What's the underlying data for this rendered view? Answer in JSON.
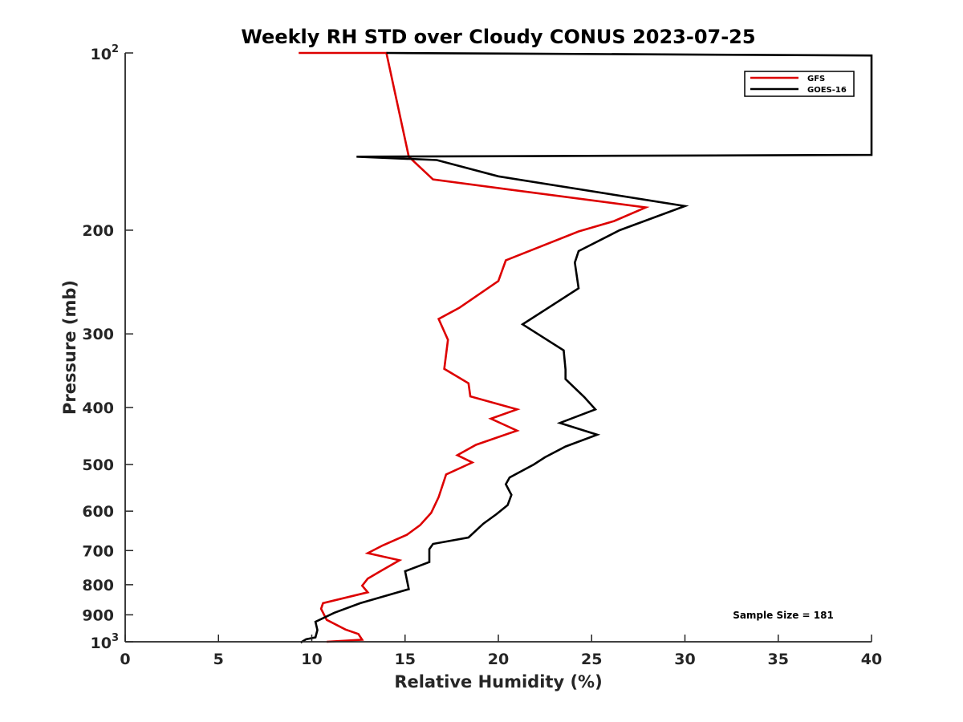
{
  "chart_data": {
    "type": "line",
    "title": "Weekly RH STD over Cloudy CONUS 2023-07-25",
    "xlabel": "Relative Humidity (%)",
    "ylabel": "Pressure (mb)",
    "xlim": [
      0,
      40
    ],
    "ylim": [
      100,
      1000
    ],
    "y_scale": "log",
    "y_reversed": true,
    "grid": false,
    "x_ticks": [
      0,
      5,
      10,
      15,
      20,
      25,
      30,
      35,
      40
    ],
    "x_tick_labels": [
      "0",
      "5",
      "10",
      "15",
      "20",
      "25",
      "30",
      "35",
      "40"
    ],
    "y_ticks": [
      {
        "value": 100,
        "base": "10",
        "exp": "2"
      },
      {
        "value": 200,
        "label": "200"
      },
      {
        "value": 300,
        "label": "300"
      },
      {
        "value": 400,
        "label": "400"
      },
      {
        "value": 500,
        "label": "500"
      },
      {
        "value": 600,
        "label": "600"
      },
      {
        "value": 700,
        "label": "700"
      },
      {
        "value": 800,
        "label": "800"
      },
      {
        "value": 900,
        "label": "900"
      },
      {
        "value": 1000,
        "base": "10",
        "exp": "3"
      }
    ],
    "legend_position": "top-right",
    "annotation": "Sample Size = 181",
    "series": [
      {
        "name": "GFS",
        "color": "#dd0000",
        "points": [
          [
            9.3,
            100
          ],
          [
            14,
            100
          ],
          [
            15.2,
            150
          ],
          [
            16.5,
            164
          ],
          [
            27.9,
            183
          ],
          [
            26.2,
            193
          ],
          [
            24.3,
            201
          ],
          [
            20.4,
            225
          ],
          [
            20.0,
            244
          ],
          [
            17.9,
            271
          ],
          [
            16.8,
            283
          ],
          [
            17.3,
            307
          ],
          [
            17.1,
            344
          ],
          [
            18.4,
            364
          ],
          [
            18.5,
            383
          ],
          [
            21.0,
            403
          ],
          [
            19.6,
            418
          ],
          [
            21.0,
            438
          ],
          [
            18.8,
            463
          ],
          [
            17.8,
            482
          ],
          [
            18.6,
            496
          ],
          [
            17.2,
            520
          ],
          [
            16.8,
            568
          ],
          [
            16.4,
            604
          ],
          [
            15.8,
            634
          ],
          [
            15.1,
            658
          ],
          [
            13.8,
            686
          ],
          [
            13.0,
            707
          ],
          [
            14.7,
            727
          ],
          [
            13.7,
            758
          ],
          [
            13.0,
            781
          ],
          [
            12.7,
            803
          ],
          [
            13.0,
            824
          ],
          [
            10.6,
            860
          ],
          [
            10.5,
            879
          ],
          [
            10.8,
            918
          ],
          [
            11.8,
            953
          ],
          [
            12.5,
            970
          ],
          [
            12.7,
            992
          ],
          [
            10.8,
            1000
          ]
        ]
      },
      {
        "name": "GOES-16",
        "color": "#000000",
        "points": [
          [
            14,
            100
          ],
          [
            40,
            101
          ],
          [
            40,
            149
          ],
          [
            12.4,
            150
          ],
          [
            16.7,
            152
          ],
          [
            20.0,
            162
          ],
          [
            30.0,
            182
          ],
          [
            26.5,
            200
          ],
          [
            24.3,
            217
          ],
          [
            24.1,
            227
          ],
          [
            24.3,
            251
          ],
          [
            21.3,
            289
          ],
          [
            23.5,
            320
          ],
          [
            23.6,
            345
          ],
          [
            23.6,
            358
          ],
          [
            24.6,
            384
          ],
          [
            25.2,
            403
          ],
          [
            23.3,
            425
          ],
          [
            25.3,
            445
          ],
          [
            23.6,
            466
          ],
          [
            22.5,
            486
          ],
          [
            21.9,
            500
          ],
          [
            20.6,
            526
          ],
          [
            20.4,
            540
          ],
          [
            20.7,
            563
          ],
          [
            20.5,
            586
          ],
          [
            19.9,
            607
          ],
          [
            19.2,
            630
          ],
          [
            18.4,
            665
          ],
          [
            16.5,
            682
          ],
          [
            16.3,
            696
          ],
          [
            16.3,
            732
          ],
          [
            15.0,
            759
          ],
          [
            15.1,
            786
          ],
          [
            15.2,
            814
          ],
          [
            12.6,
            860
          ],
          [
            11.2,
            893
          ],
          [
            10.2,
            925
          ],
          [
            10.3,
            955
          ],
          [
            10.2,
            983
          ],
          [
            9.7,
            990
          ],
          [
            9.4,
            1003
          ]
        ]
      }
    ]
  }
}
